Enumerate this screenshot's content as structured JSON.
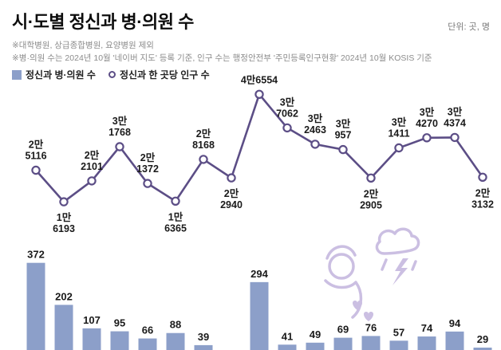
{
  "header": {
    "title": "시·도별 정신과 병·의원 수",
    "unit_label": "단위: 곳, 명",
    "footnote1": "※대학병원, 상급종합병원, 요양병원 제외",
    "footnote2": "※병·의원 수는 2024년 10월 '네이버 지도' 등록 기준, 인구 수는 행정안전부 '주민등록인구현황' 2024년 10월 KOSIS 기준"
  },
  "legend": {
    "bar_label": "정신과 병·의원 수",
    "line_label": "정신과 한 곳당 인구 수"
  },
  "colors": {
    "bar": "#8c9fc9",
    "line": "#5c4e86",
    "marker_fill": "#ffffff",
    "label_text": "#1a1a1a",
    "footnote_text": "#8c8c8c",
    "illustration": "#cbbfe2"
  },
  "chart_data": {
    "type": "bar",
    "combo": "bar+line",
    "title": "시·도별 정신과 병·의원 수",
    "legend_position": "top-left",
    "grid": false,
    "series": [
      {
        "name": "정신과 병·의원 수",
        "type": "bar",
        "values": [
          372,
          202,
          107,
          95,
          66,
          88,
          39,
          null,
          294,
          41,
          49,
          69,
          76,
          57,
          74,
          94,
          29
        ]
      },
      {
        "name": "정신과 한 곳당 인구 수",
        "type": "line",
        "values": [
          25116,
          16193,
          22101,
          31768,
          21372,
          16365,
          28168,
          22940,
          46554,
          37062,
          32463,
          30957,
          22905,
          31411,
          34270,
          34374,
          23132
        ],
        "point_labels": [
          "2만\n5116",
          "1만\n6193",
          "2만\n2101",
          "3만\n1768",
          "2만\n1372",
          "1만\n6365",
          "2만\n8168",
          "2만\n2940",
          "4만6554",
          "3만\n7062",
          "3만\n2463",
          "3만\n957",
          "2만\n2905",
          "3만\n1411",
          "3만\n4270",
          "3만\n4374",
          "2만\n3132"
        ],
        "label_side": [
          "above",
          "below",
          "above",
          "above",
          "above",
          "below",
          "above",
          "below",
          "above",
          "above",
          "above",
          "above",
          "below",
          "above",
          "above",
          "above",
          "below"
        ]
      }
    ]
  }
}
